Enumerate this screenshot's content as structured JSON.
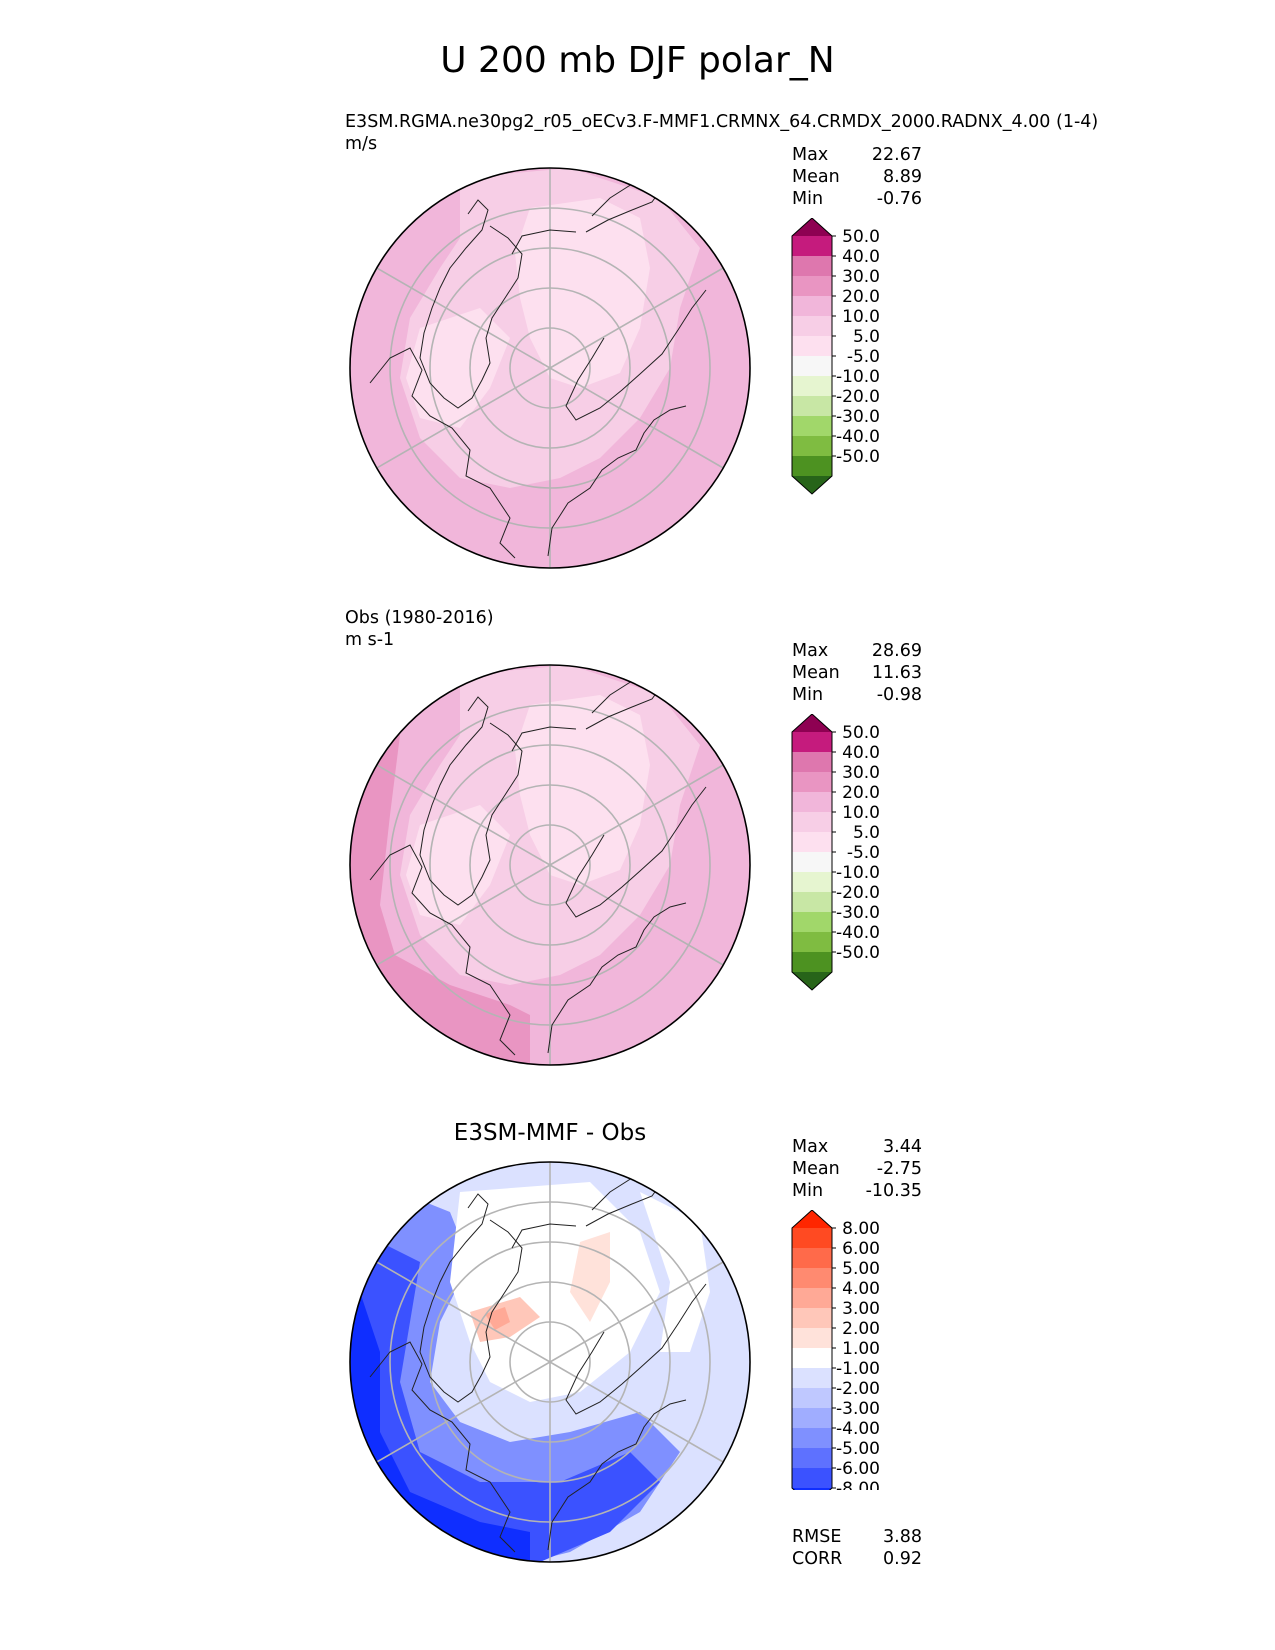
{
  "title": "U 200 mb DJF polar_N",
  "panels": [
    {
      "id": "test",
      "caption_lines": [
        "E3SM.RGMA.ne30pg2_r05_oECv3.F-MMF1.CRMNX_64.CRMDX_2000.RADNX_4.00 (1-4)",
        "m/s"
      ],
      "center_title": "",
      "stats": [
        {
          "label": "Max",
          "value": "22.67"
        },
        {
          "label": "Mean",
          "value": "8.89"
        },
        {
          "label": "Min",
          "value": "-0.76"
        }
      ],
      "colorbar": {
        "ticks": [
          "50.0",
          "40.0",
          "30.0",
          "20.0",
          "10.0",
          "5.0",
          "-5.0",
          "-10.0",
          "-20.0",
          "-30.0",
          "-40.0",
          "-50.0"
        ],
        "colors_top_to_bottom": [
          "#8e0152",
          "#c51b7d",
          "#de77ae",
          "#e995c2",
          "#f1b6da",
          "#f7cee6",
          "#fde0ef",
          "#f7f7f7",
          "#e6f5d0",
          "#c8e7a5",
          "#a1d76a",
          "#7fbc41",
          "#4d9221",
          "#276419"
        ]
      }
    },
    {
      "id": "ref",
      "caption_lines": [
        "Obs (1980-2016)",
        "m s-1"
      ],
      "center_title": "",
      "stats": [
        {
          "label": "Max",
          "value": "28.69"
        },
        {
          "label": "Mean",
          "value": "11.63"
        },
        {
          "label": "Min",
          "value": "-0.98"
        }
      ],
      "colorbar": {
        "ticks": [
          "50.0",
          "40.0",
          "30.0",
          "20.0",
          "10.0",
          "5.0",
          "-5.0",
          "-10.0",
          "-20.0",
          "-30.0",
          "-40.0",
          "-50.0"
        ],
        "colors_top_to_bottom": [
          "#8e0152",
          "#c51b7d",
          "#de77ae",
          "#e995c2",
          "#f1b6da",
          "#f7cee6",
          "#fde0ef",
          "#f7f7f7",
          "#e6f5d0",
          "#c8e7a5",
          "#a1d76a",
          "#7fbc41",
          "#4d9221",
          "#276419"
        ]
      }
    },
    {
      "id": "diff",
      "caption_lines": [],
      "center_title": "E3SM-MMF - Obs",
      "stats": [
        {
          "label": "Max",
          "value": "3.44"
        },
        {
          "label": "Mean",
          "value": "-2.75"
        },
        {
          "label": "Min",
          "value": "-10.35"
        }
      ],
      "footer_stats": [
        {
          "label": "RMSE",
          "value": "3.88"
        },
        {
          "label": "CORR",
          "value": "0.92"
        }
      ],
      "colorbar": {
        "ticks": [
          "8.00",
          "6.00",
          "5.00",
          "4.00",
          "3.00",
          "2.00",
          "1.00",
          "-1.00",
          "-2.00",
          "-3.00",
          "-4.00",
          "-5.00",
          "-6.00",
          "-8.00"
        ],
        "colors_top_to_bottom": [
          "#ff2600",
          "#ff4a22",
          "#ff6a4a",
          "#ff8a70",
          "#ffa996",
          "#ffc7b9",
          "#ffe2da",
          "#ffffff",
          "#dbe1ff",
          "#bfc8ff",
          "#a0adff",
          "#7f90ff",
          "#5e71ff",
          "#3b52ff",
          "#0f2eff"
        ]
      }
    }
  ],
  "chart_data": [
    {
      "type": "heatmap",
      "projection": "north polar stereographic",
      "title": "E3SM.RGMA.ne30pg2_r05_oECv3.F-MMF1.CRMNX_64.CRMDX_2000.RADNX_4.00 (1-4)",
      "units": "m/s",
      "variable": "U 200 mb DJF",
      "contour_levels": [
        -50,
        -40,
        -30,
        -20,
        -10,
        -5,
        5,
        10,
        20,
        30,
        40,
        50
      ],
      "max": 22.67,
      "mean": 8.89,
      "min": -0.76
    },
    {
      "type": "heatmap",
      "projection": "north polar stereographic",
      "title": "Obs (1980-2016)",
      "units": "m s-1",
      "variable": "U 200 mb DJF",
      "contour_levels": [
        -50,
        -40,
        -30,
        -20,
        -10,
        -5,
        5,
        10,
        20,
        30,
        40,
        50
      ],
      "max": 28.69,
      "mean": 11.63,
      "min": -0.98
    },
    {
      "type": "heatmap",
      "projection": "north polar stereographic",
      "title": "E3SM-MMF - Obs",
      "contour_levels": [
        -8,
        -6,
        -5,
        -4,
        -3,
        -2,
        -1,
        1,
        2,
        3,
        4,
        5,
        6,
        8
      ],
      "max": 3.44,
      "mean": -2.75,
      "min": -10.35,
      "rmse": 3.88,
      "corr": 0.92
    }
  ]
}
